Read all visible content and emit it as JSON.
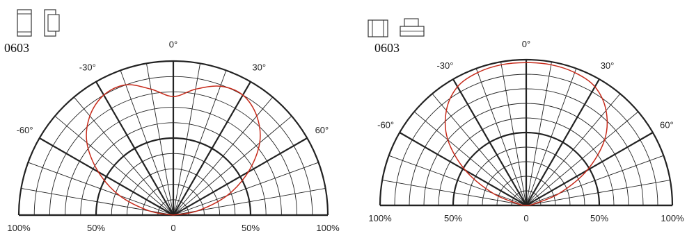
{
  "colors": {
    "curve": "#c62a1a",
    "grid": "#222222"
  },
  "chart_data": [
    {
      "type": "polar",
      "package_label": "0603",
      "icons": [
        "chip-led-top-view-icon",
        "chip-led-side-view-icon"
      ],
      "angle_ticks": [
        {
          "angle": 0,
          "label": "0°"
        },
        {
          "angle": -30,
          "label": "-30°"
        },
        {
          "angle": 30,
          "label": "30°"
        },
        {
          "angle": -60,
          "label": "-60°"
        },
        {
          "angle": 60,
          "label": "60°"
        }
      ],
      "radial_ticks": [
        "100%",
        "50%",
        "0",
        "50%",
        "100%"
      ],
      "radial_range": [
        0,
        100
      ],
      "angle_range": [
        -90,
        90
      ],
      "series": [
        {
          "values": [
            {
              "angle": -90,
              "r": 0
            },
            {
              "angle": -80,
              "r": 16
            },
            {
              "angle": -70,
              "r": 37
            },
            {
              "angle": -60,
              "r": 56
            },
            {
              "angle": -50,
              "r": 73
            },
            {
              "angle": -40,
              "r": 84
            },
            {
              "angle": -30,
              "r": 90
            },
            {
              "angle": -20,
              "r": 90
            },
            {
              "angle": -10,
              "r": 83
            },
            {
              "angle": 0,
              "r": 77
            },
            {
              "angle": 10,
              "r": 83
            },
            {
              "angle": 20,
              "r": 89
            },
            {
              "angle": 30,
              "r": 90
            },
            {
              "angle": 40,
              "r": 84
            },
            {
              "angle": 50,
              "r": 73
            },
            {
              "angle": 60,
              "r": 56
            },
            {
              "angle": 70,
              "r": 37
            },
            {
              "angle": 80,
              "r": 16
            },
            {
              "angle": 90,
              "r": 0
            }
          ]
        }
      ]
    },
    {
      "type": "polar",
      "package_label": "0603",
      "icons": [
        "chip-led-front-view-icon",
        "chip-led-end-view-icon"
      ],
      "angle_ticks": [
        {
          "angle": 0,
          "label": "0°"
        },
        {
          "angle": -30,
          "label": "-30°"
        },
        {
          "angle": 30,
          "label": "30°"
        },
        {
          "angle": -60,
          "label": "-60°"
        },
        {
          "angle": 60,
          "label": "60°"
        }
      ],
      "radial_ticks": [
        "100%",
        "50%",
        "0",
        "50%",
        "100%"
      ],
      "radial_range": [
        0,
        100
      ],
      "angle_range": [
        -90,
        90
      ],
      "series": [
        {
          "values": [
            {
              "angle": -90,
              "r": 0
            },
            {
              "angle": -80,
              "r": 5
            },
            {
              "angle": -70,
              "r": 24
            },
            {
              "angle": -60,
              "r": 48
            },
            {
              "angle": -50,
              "r": 70
            },
            {
              "angle": -40,
              "r": 85
            },
            {
              "angle": -30,
              "r": 94
            },
            {
              "angle": -20,
              "r": 97
            },
            {
              "angle": -10,
              "r": 98
            },
            {
              "angle": 0,
              "r": 98
            },
            {
              "angle": 10,
              "r": 98
            },
            {
              "angle": 20,
              "r": 97
            },
            {
              "angle": 30,
              "r": 94
            },
            {
              "angle": 40,
              "r": 85
            },
            {
              "angle": 50,
              "r": 70
            },
            {
              "angle": 60,
              "r": 48
            },
            {
              "angle": 70,
              "r": 24
            },
            {
              "angle": 80,
              "r": 5
            },
            {
              "angle": 90,
              "r": 0
            }
          ]
        }
      ]
    }
  ]
}
